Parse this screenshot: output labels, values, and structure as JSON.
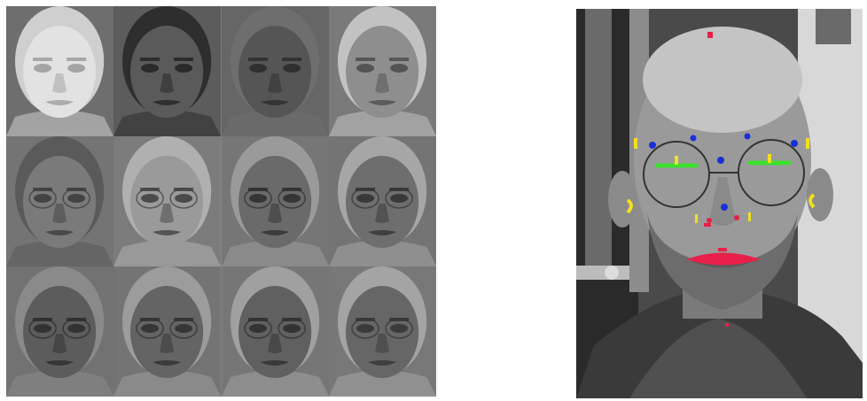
{
  "eigenface_grid": {
    "rows": 3,
    "cols": 4,
    "tiles": [
      {
        "bg": "#6e6e6e",
        "face": "#e2e2e2",
        "hair": "#cfcfcf",
        "feature": "#9a9a9a"
      },
      {
        "bg": "#5c5c5c",
        "face": "#5a5a5a",
        "hair": "#2e2e2e",
        "feature": "#222222"
      },
      {
        "bg": "#666666",
        "face": "#555555",
        "hair": "#6e6e6e",
        "feature": "#2a2a2a"
      },
      {
        "bg": "#7a7a7a",
        "face": "#8e8e8e",
        "hair": "#c2c2c2",
        "feature": "#4a4a4a"
      },
      {
        "bg": "#747474",
        "face": "#7a7a7a",
        "hair": "#5a5a5a",
        "feature": "#3a3a3a"
      },
      {
        "bg": "#7c7c7c",
        "face": "#9a9a9a",
        "hair": "#b0b0b0",
        "feature": "#3c3c3c"
      },
      {
        "bg": "#767676",
        "face": "#6a6a6a",
        "hair": "#9a9a9a",
        "feature": "#2c2c2c"
      },
      {
        "bg": "#747474",
        "face": "#6e6e6e",
        "hair": "#a6a6a6",
        "feature": "#303030"
      },
      {
        "bg": "#727272",
        "face": "#5c5c5c",
        "hair": "#8a8a8a",
        "feature": "#2a2a2a"
      },
      {
        "bg": "#747474",
        "face": "#646464",
        "hair": "#9c9c9c",
        "feature": "#2e2e2e"
      },
      {
        "bg": "#767676",
        "face": "#606060",
        "hair": "#a0a0a0",
        "feature": "#2c2c2c"
      },
      {
        "bg": "#787878",
        "face": "#666666",
        "hair": "#a4a4a4",
        "feature": "#323232"
      }
    ]
  },
  "landmark_photo": {
    "marker_colors": {
      "crown": "#e8204a",
      "eye_corners": "#1a2fd8",
      "eyebrows": "#f0e020",
      "pupils": "#3ee030",
      "ears": "#f0e020",
      "nose_sides": "#f0e020",
      "nostrils": "#e8204a",
      "nose_bridge": "#1a2fd8",
      "mouth": "#e8204a",
      "chin": "#e8204a"
    }
  }
}
